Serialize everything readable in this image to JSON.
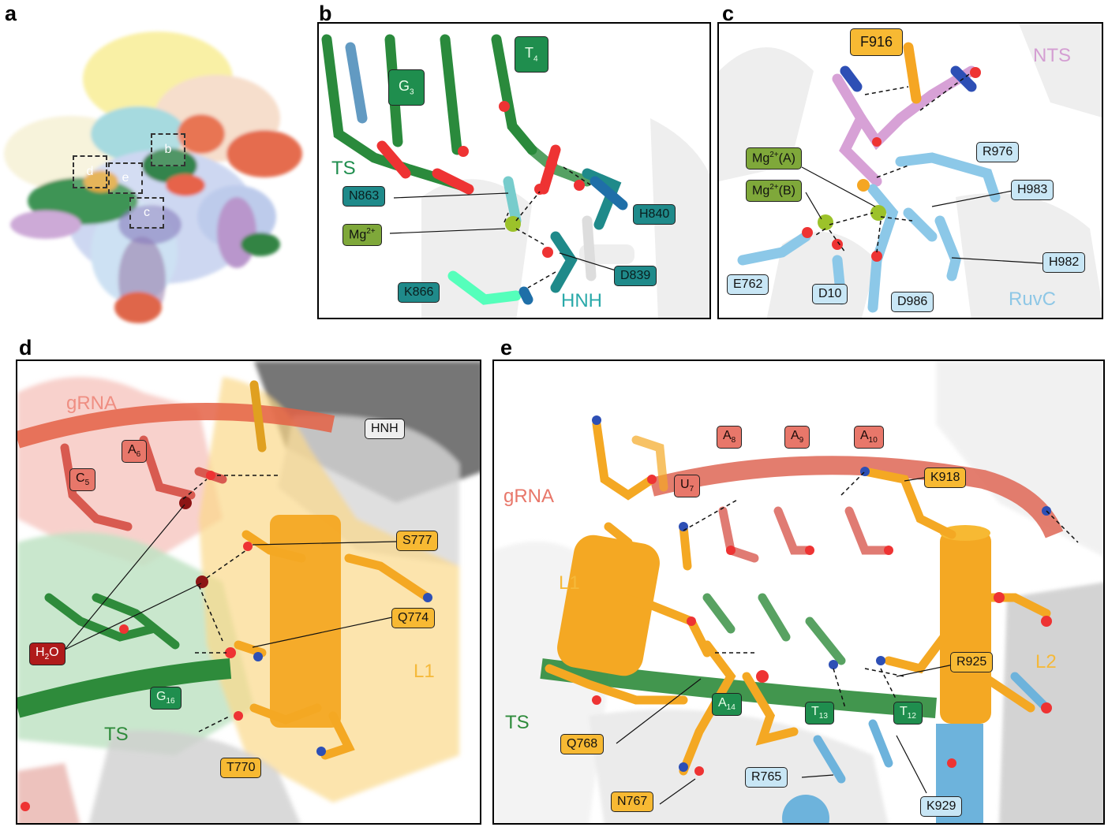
{
  "panels": {
    "a": {
      "label": "a",
      "boxes": [
        "b",
        "d",
        "e",
        "c"
      ]
    },
    "b": {
      "label": "b",
      "labels": {
        "G3_base": "G",
        "G3_sub": "3",
        "T4_base": "T",
        "T4_sub": "4",
        "TS": "TS",
        "N863": "N863",
        "Mg_base": "Mg",
        "Mg_sup": "2+",
        "H840": "H840",
        "D839": "D839",
        "K866": "K866",
        "HNH": "HNH"
      }
    },
    "c": {
      "label": "c",
      "labels": {
        "F916": "F916",
        "NTS": "NTS",
        "R976": "R976",
        "MgA_base": "Mg",
        "MgA_sup": "2+",
        "MgA_suffix": "(A)",
        "MgB_base": "Mg",
        "MgB_sup": "2+",
        "MgB_suffix": "(B)",
        "H983": "H983",
        "H982": "H982",
        "E762": "E762",
        "D10": "D10",
        "D986": "D986",
        "RuvC": "RuvC"
      }
    },
    "d": {
      "label": "d",
      "labels": {
        "gRNA": "gRNA",
        "HNH": "HNH",
        "A6_base": "A",
        "A6_sub": "6",
        "C5_base": "C",
        "C5_sub": "5",
        "S777": "S777",
        "Q774": "Q774",
        "H2O_base": "H",
        "H2O_sub": "2",
        "H2O_end": "O",
        "L1": "L1",
        "G16_base": "G",
        "G16_sub": "16",
        "TS": "TS",
        "T770": "T770"
      }
    },
    "e": {
      "label": "e",
      "labels": {
        "A8_base": "A",
        "A8_sub": "8",
        "A9_base": "A",
        "A9_sub": "9",
        "A10_base": "A",
        "A10_sub": "10",
        "gRNA": "gRNA",
        "U7_base": "U",
        "U7_sub": "7",
        "K918": "K918",
        "L1": "L1",
        "R925": "R925",
        "L2": "L2",
        "A14_base": "A",
        "A14_sub": "14",
        "TS": "TS",
        "T13_base": "T",
        "T13_sub": "13",
        "T12_base": "T",
        "T12_sub": "12",
        "Q768": "Q768",
        "R765": "R765",
        "N767": "N767",
        "K929": "K929"
      }
    }
  },
  "colors": {
    "teal": "#1f8a8a",
    "green": "#1f8e4e",
    "olive": "#7fa83a",
    "lightblue": "#c8e6f5",
    "orange": "#f7b933",
    "salmon": "#e8776a",
    "darkred": "#b01b1b",
    "grey": "#eeeeee"
  }
}
